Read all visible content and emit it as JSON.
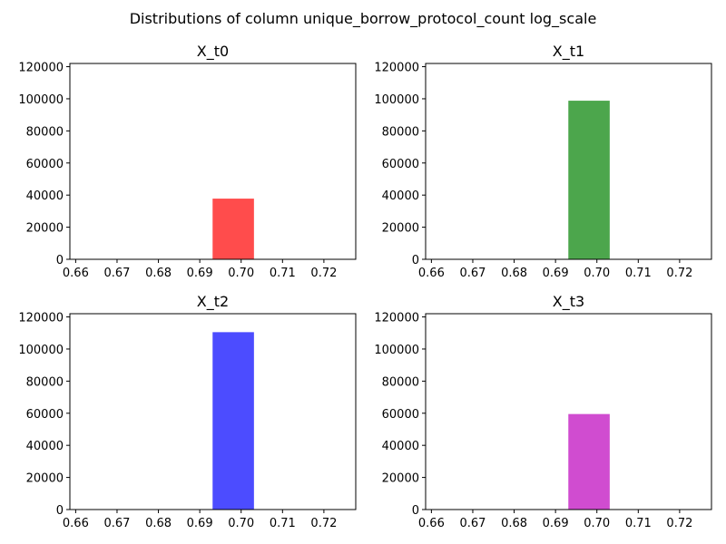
{
  "figure": {
    "title": "Distributions of column unique_borrow_protocol_count log_scale"
  },
  "chart_data": [
    {
      "type": "bar",
      "title": "X_t0",
      "xlim": [
        0.6586,
        0.7277
      ],
      "ylim": [
        0,
        122000
      ],
      "xticks": [
        0.66,
        0.67,
        0.68,
        0.69,
        0.7,
        0.71,
        0.72
      ],
      "xtick_labels": [
        "0.66",
        "0.67",
        "0.68",
        "0.69",
        "0.70",
        "0.71",
        "0.72"
      ],
      "yticks": [
        0,
        20000,
        40000,
        60000,
        80000,
        100000,
        120000
      ],
      "ytick_labels": [
        "0",
        "20000",
        "40000",
        "60000",
        "80000",
        "100000",
        "120000"
      ],
      "bar": {
        "x0": 0.6931,
        "x1": 0.7031,
        "value": 37800
      },
      "color": "#ff4c4c"
    },
    {
      "type": "bar",
      "title": "X_t1",
      "xlim": [
        0.6586,
        0.7277
      ],
      "ylim": [
        0,
        122000
      ],
      "xticks": [
        0.66,
        0.67,
        0.68,
        0.69,
        0.7,
        0.71,
        0.72
      ],
      "xtick_labels": [
        "0.66",
        "0.67",
        "0.68",
        "0.69",
        "0.70",
        "0.71",
        "0.72"
      ],
      "yticks": [
        0,
        20000,
        40000,
        60000,
        80000,
        100000,
        120000
      ],
      "ytick_labels": [
        "0",
        "20000",
        "40000",
        "60000",
        "80000",
        "100000",
        "120000"
      ],
      "bar": {
        "x0": 0.6931,
        "x1": 0.7031,
        "value": 98800
      },
      "color": "#4ca64c"
    },
    {
      "type": "bar",
      "title": "X_t2",
      "xlim": [
        0.6586,
        0.7277
      ],
      "ylim": [
        0,
        122000
      ],
      "xticks": [
        0.66,
        0.67,
        0.68,
        0.69,
        0.7,
        0.71,
        0.72
      ],
      "xtick_labels": [
        "0.66",
        "0.67",
        "0.68",
        "0.69",
        "0.70",
        "0.71",
        "0.72"
      ],
      "yticks": [
        0,
        20000,
        40000,
        60000,
        80000,
        100000,
        120000
      ],
      "ytick_labels": [
        "0",
        "20000",
        "40000",
        "60000",
        "80000",
        "100000",
        "120000"
      ],
      "bar": {
        "x0": 0.6931,
        "x1": 0.7031,
        "value": 110500
      },
      "color": "#4c4cff"
    },
    {
      "type": "bar",
      "title": "X_t3",
      "xlim": [
        0.6586,
        0.7277
      ],
      "ylim": [
        0,
        122000
      ],
      "xticks": [
        0.66,
        0.67,
        0.68,
        0.69,
        0.7,
        0.71,
        0.72
      ],
      "xtick_labels": [
        "0.66",
        "0.67",
        "0.68",
        "0.69",
        "0.70",
        "0.71",
        "0.72"
      ],
      "yticks": [
        0,
        20000,
        40000,
        60000,
        80000,
        100000,
        120000
      ],
      "ytick_labels": [
        "0",
        "20000",
        "40000",
        "60000",
        "80000",
        "100000",
        "120000"
      ],
      "bar": {
        "x0": 0.6931,
        "x1": 0.7031,
        "value": 59500
      },
      "color": "#d04cd0"
    }
  ]
}
